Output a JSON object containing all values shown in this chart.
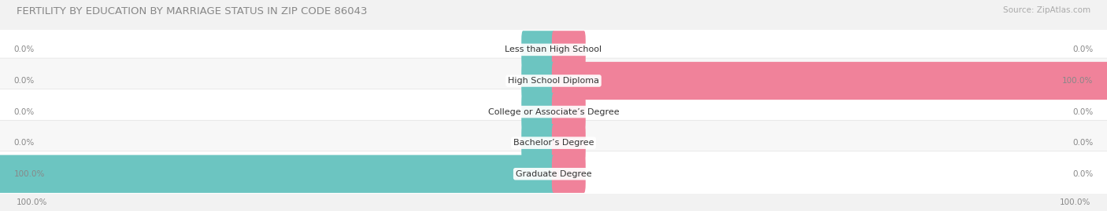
{
  "title": "FERTILITY BY EDUCATION BY MARRIAGE STATUS IN ZIP CODE 86043",
  "source": "Source: ZipAtlas.com",
  "categories": [
    "Less than High School",
    "High School Diploma",
    "College or Associate’s Degree",
    "Bachelor’s Degree",
    "Graduate Degree"
  ],
  "married_left_pct": [
    0.0,
    0.0,
    0.0,
    0.0,
    100.0
  ],
  "unmarried_right_pct": [
    0.0,
    100.0,
    0.0,
    0.0,
    0.0
  ],
  "married_color": "#6cc5c1",
  "unmarried_color": "#f0829a",
  "bg_color": "#f2f2f2",
  "row_bg_color": "#ffffff",
  "row_alt_bg_color": "#f7f7f7",
  "title_color": "#888888",
  "label_color": "#888888",
  "source_color": "#aaaaaa",
  "cat_label_color": "#333333",
  "title_fontsize": 9.5,
  "source_fontsize": 7.5,
  "label_fontsize": 7.5,
  "cat_fontsize": 8.0,
  "figsize": [
    14.06,
    2.69
  ],
  "dpi": 100,
  "bottom_left_label": "100.0%",
  "bottom_right_label": "100.0%",
  "stub_pct": 5.5
}
